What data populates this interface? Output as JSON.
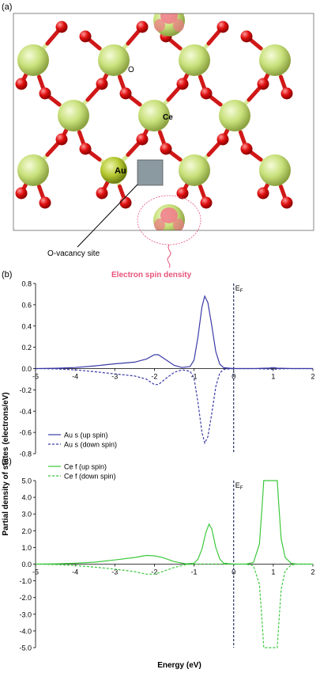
{
  "panels": {
    "a": {
      "label": "(a)"
    },
    "b": {
      "label": "(b)"
    },
    "c": {
      "label": "(c)"
    }
  },
  "structure": {
    "atom_labels": {
      "O": "O",
      "Ce": "Ce",
      "Au": "Au"
    },
    "annotations": {
      "vacancy": "O-vacancy site",
      "spin_density": "Electron spin density"
    },
    "colors": {
      "ce_atom": "#c8e07a",
      "o_atom": "#e01010",
      "au_atom": "#b5c830",
      "bond_light": "#d8e89a",
      "spin_density": "#f07a8a",
      "vacancy_box": "#8a9aa0",
      "annotation_pink": "#e8547a"
    }
  },
  "shared": {
    "ylabel": "Partial density of states (electrons/eV)",
    "xlabel": "Energy (eV)",
    "fermi_label": "E",
    "fermi_sub": "F"
  },
  "chart_data": [
    {
      "type": "line",
      "panel": "b",
      "xlim": [
        -5,
        2
      ],
      "ylim": [
        -0.8,
        0.8
      ],
      "x_ticks": [
        "-5",
        "-4",
        "-3",
        "-2",
        "-1",
        "0",
        "1",
        "2"
      ],
      "y_ticks": [
        "0.8",
        "0.6",
        "0.4",
        "0.2",
        "0.0",
        "-0.2",
        "-0.4",
        "-0.6",
        "-0.8"
      ],
      "fermi_level": 0,
      "color": "#3a3aa8",
      "series": [
        {
          "name": "Au s (up spin)",
          "dash": false,
          "x": [
            -5,
            -4.5,
            -4,
            -3.5,
            -3,
            -2.5,
            -2.2,
            -2,
            -1.9,
            -1.7,
            -1.5,
            -1.3,
            -1.1,
            -1.0,
            -0.9,
            -0.8,
            -0.73,
            -0.65,
            -0.55,
            -0.45,
            -0.35,
            -0.25,
            0,
            0.5,
            0.9,
            1.0,
            1.1,
            1.5,
            2
          ],
          "y": [
            0,
            0.003,
            0.01,
            0.025,
            0.045,
            0.06,
            0.09,
            0.13,
            0.13,
            0.08,
            0.03,
            0.01,
            0.02,
            0.08,
            0.3,
            0.58,
            0.68,
            0.62,
            0.4,
            0.16,
            0.04,
            0.008,
            0,
            0,
            0.005,
            0.01,
            0.004,
            0,
            0
          ]
        },
        {
          "name": "Au s (down spin)",
          "dash": true,
          "x": [
            -5,
            -4.5,
            -4,
            -3.5,
            -3,
            -2.5,
            -2.2,
            -2,
            -1.9,
            -1.7,
            -1.5,
            -1.3,
            -1.1,
            -1.0,
            -0.9,
            -0.8,
            -0.73,
            -0.65,
            -0.55,
            -0.45,
            -0.35,
            -0.25,
            0,
            0.5,
            0.9,
            1.0,
            1.1,
            1.5,
            2
          ],
          "y": [
            0,
            -0.003,
            -0.012,
            -0.03,
            -0.05,
            -0.07,
            -0.1,
            -0.15,
            -0.15,
            -0.09,
            -0.035,
            -0.012,
            -0.025,
            -0.09,
            -0.32,
            -0.6,
            -0.7,
            -0.64,
            -0.42,
            -0.17,
            -0.04,
            -0.008,
            0,
            0,
            -0.005,
            -0.01,
            -0.004,
            0,
            0
          ]
        }
      ]
    },
    {
      "type": "line",
      "panel": "c",
      "xlim": [
        -5,
        2
      ],
      "ylim": [
        -5,
        5
      ],
      "x_ticks": [
        "-5",
        "-4",
        "-3",
        "-2",
        "-1",
        "0",
        "1",
        "2"
      ],
      "y_ticks": [
        "5.0",
        "4.0",
        "3.0",
        "2.0",
        "1.0",
        "0.0",
        "-1.0",
        "-2.0",
        "-3.0",
        "-4.0",
        "-5.0"
      ],
      "fermi_level": 0,
      "color": "#3cc83c",
      "series": [
        {
          "name": "Ce f (up spin)",
          "dash": false,
          "x": [
            -5,
            -4.5,
            -4,
            -3.5,
            -3,
            -2.5,
            -2.2,
            -2.0,
            -1.8,
            -1.5,
            -1.2,
            -1.0,
            -0.9,
            -0.8,
            -0.7,
            -0.62,
            -0.55,
            -0.45,
            -0.35,
            -0.25,
            0,
            0.3,
            0.5,
            0.65,
            0.72,
            0.76,
            1.1,
            1.14,
            1.2,
            1.3,
            1.45,
            1.6,
            2
          ],
          "y": [
            0,
            0.02,
            0.05,
            0.12,
            0.25,
            0.4,
            0.52,
            0.5,
            0.4,
            0.15,
            0.02,
            0.05,
            0.3,
            0.9,
            1.9,
            2.4,
            2.1,
            1.0,
            0.3,
            0.05,
            0,
            0,
            0.1,
            1.2,
            3.5,
            5,
            5,
            3.5,
            1.5,
            0.4,
            0.05,
            0,
            0
          ]
        },
        {
          "name": "Ce f (down spin)",
          "dash": true,
          "x": [
            -5,
            -4.5,
            -4,
            -3.5,
            -3,
            -2.5,
            -2.2,
            -2.0,
            -1.8,
            -1.5,
            -1.2,
            -1.0,
            0,
            0.3,
            0.5,
            0.65,
            0.72,
            0.76,
            1.1,
            1.14,
            1.2,
            1.3,
            1.45,
            1.6,
            2
          ],
          "y": [
            0,
            -0.03,
            -0.08,
            -0.18,
            -0.3,
            -0.45,
            -0.6,
            -0.6,
            -0.45,
            -0.2,
            -0.03,
            0,
            0,
            0,
            -0.1,
            -1.2,
            -3.5,
            -5,
            -5,
            -3.5,
            -1.5,
            -0.4,
            -0.05,
            0,
            0
          ]
        }
      ]
    }
  ]
}
